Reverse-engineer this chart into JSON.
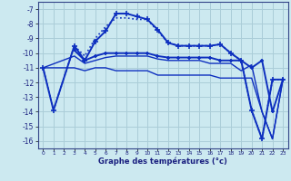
{
  "bg_color": "#cce9f0",
  "grid_color": "#aacdd8",
  "line_color": "#0d2fbf",
  "xlabel": "Graphe des températures (°c)",
  "xlim": [
    -0.5,
    23.5
  ],
  "ylim": [
    -16.5,
    -6.5
  ],
  "yticks": [
    -7,
    -8,
    -9,
    -10,
    -11,
    -12,
    -13,
    -14,
    -15,
    -16
  ],
  "xticks": [
    0,
    1,
    2,
    3,
    4,
    5,
    6,
    7,
    8,
    9,
    10,
    11,
    12,
    13,
    14,
    15,
    16,
    17,
    18,
    19,
    20,
    21,
    22,
    23
  ],
  "series": [
    {
      "x": [
        0,
        1,
        3,
        4,
        5,
        6,
        7,
        8,
        9,
        10,
        11,
        12,
        13,
        14,
        15,
        16,
        17,
        18,
        19,
        20,
        21,
        22,
        23
      ],
      "y": [
        -11,
        -13.9,
        -9.5,
        -10.5,
        -9.2,
        -8.5,
        -7.3,
        -7.3,
        -7.5,
        -7.7,
        -8.4,
        -9.3,
        -9.5,
        -9.5,
        -9.5,
        -9.5,
        -9.4,
        -10.0,
        -10.5,
        -13.9,
        -15.85,
        -11.8,
        -11.8
      ],
      "marker": "+",
      "linestyle": "-",
      "linewidth": 1.4,
      "markersize": 4
    },
    {
      "x": [
        0,
        1,
        3,
        4,
        5,
        6,
        7,
        8,
        9,
        10,
        11,
        12,
        13,
        14,
        15,
        16,
        17,
        18,
        19,
        20,
        21,
        22,
        23
      ],
      "y": [
        -11,
        -13.9,
        -9.5,
        -10.2,
        -9.0,
        -8.2,
        -7.6,
        -7.6,
        -7.7,
        -7.7,
        -8.5,
        -9.3,
        -9.5,
        -9.5,
        -9.5,
        -9.5,
        -9.4,
        -10.0,
        -10.5,
        -13.9,
        -15.85,
        -11.8,
        -11.8
      ],
      "marker": null,
      "linestyle": ":",
      "linewidth": 1.2,
      "markersize": 0
    },
    {
      "x": [
        3,
        4,
        5,
        6,
        7,
        8,
        9,
        10,
        11,
        12,
        13,
        14,
        15,
        16,
        17,
        18,
        19,
        20,
        21,
        22,
        23
      ],
      "y": [
        -9.8,
        -10.5,
        -10.2,
        -10.0,
        -10.0,
        -10.0,
        -10.0,
        -10.0,
        -10.2,
        -10.3,
        -10.3,
        -10.3,
        -10.3,
        -10.3,
        -10.5,
        -10.5,
        -10.5,
        -11.0,
        -10.5,
        -14.0,
        -11.8
      ],
      "marker": "+",
      "linestyle": "-",
      "linewidth": 1.4,
      "markersize": 3
    },
    {
      "x": [
        0,
        3,
        4,
        5,
        6,
        7,
        8,
        9,
        10,
        11,
        12,
        13,
        14,
        15,
        16,
        17,
        18,
        19,
        20,
        21,
        22,
        23
      ],
      "y": [
        -11.0,
        -10.2,
        -10.7,
        -10.5,
        -10.3,
        -10.2,
        -10.2,
        -10.2,
        -10.2,
        -10.4,
        -10.5,
        -10.5,
        -10.5,
        -10.5,
        -10.7,
        -10.7,
        -10.7,
        -11.2,
        -10.8,
        -14.0,
        -15.85,
        -11.8
      ],
      "marker": null,
      "linestyle": "-",
      "linewidth": 1.0,
      "markersize": 0
    },
    {
      "x": [
        0,
        3,
        4,
        5,
        6,
        7,
        8,
        9,
        10,
        11,
        12,
        13,
        14,
        15,
        16,
        17,
        18,
        19,
        20,
        21,
        22,
        23
      ],
      "y": [
        -11.0,
        -11.0,
        -11.2,
        -11.0,
        -11.0,
        -11.2,
        -11.2,
        -11.2,
        -11.2,
        -11.5,
        -11.5,
        -11.5,
        -11.5,
        -11.5,
        -11.5,
        -11.7,
        -11.7,
        -11.7,
        -11.7,
        -14.0,
        -15.85,
        -11.8
      ],
      "marker": null,
      "linestyle": "-",
      "linewidth": 1.0,
      "markersize": 0
    }
  ]
}
